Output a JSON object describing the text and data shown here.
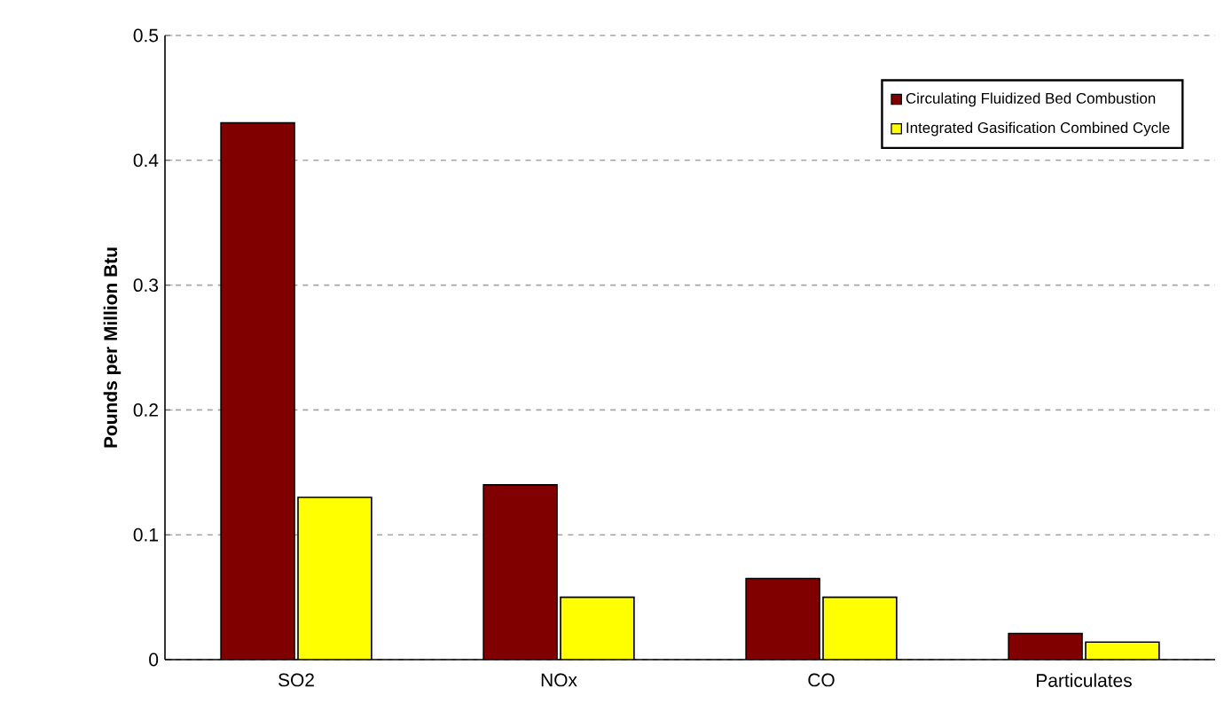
{
  "chart_data": {
    "type": "bar",
    "ylabel": "Pounds per Million Btu",
    "categories": [
      "SO2",
      "NOx",
      "CO",
      "Particulates"
    ],
    "series": [
      {
        "name": "Circulating Fluidized Bed Combustion",
        "color": "#800000",
        "values": [
          0.43,
          0.14,
          0.065,
          0.021
        ]
      },
      {
        "name": "Integrated Gasification Combined Cycle",
        "color": "#ffff00",
        "values": [
          0.13,
          0.05,
          0.05,
          0.014
        ]
      }
    ],
    "ylim": [
      0,
      0.5
    ],
    "yticks": [
      0,
      0.1,
      0.2,
      0.3,
      0.4,
      0.5
    ],
    "grid": "y",
    "legend": "top right"
  }
}
